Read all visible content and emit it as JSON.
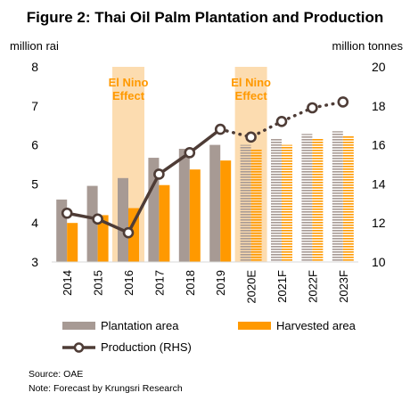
{
  "chart_data": {
    "type": "bar",
    "title": "Figure 2: Thai Oil Palm Plantation and Production",
    "left_axis_label": "million rai",
    "right_axis_label": "million tonnes",
    "categories": [
      "2014",
      "2015",
      "2016",
      "2017",
      "2018",
      "2019",
      "2020E",
      "2021F",
      "2022F",
      "2023F"
    ],
    "forecast_start_index": 6,
    "ylim_left": [
      3,
      8
    ],
    "yticks_left": [
      "3",
      "4",
      "5",
      "6",
      "7",
      "8"
    ],
    "ylim_right": [
      10,
      20
    ],
    "yticks_right": [
      "10",
      "12",
      "14",
      "16",
      "18",
      "20"
    ],
    "series": [
      {
        "name": "Plantation area",
        "axis": "left",
        "kind": "bar",
        "color": "#a79a94",
        "values": [
          4.6,
          4.95,
          5.15,
          5.67,
          5.9,
          6.0,
          6.0,
          6.15,
          6.28,
          6.35
        ]
      },
      {
        "name": "Harvested area",
        "axis": "left",
        "kind": "bar",
        "color": "#ff9900",
        "values": [
          4.0,
          4.2,
          4.38,
          4.97,
          5.37,
          5.6,
          5.9,
          6.0,
          6.17,
          6.22
        ]
      },
      {
        "name": "Production (RHS)",
        "axis": "right",
        "kind": "line",
        "color": "#4e3c36",
        "values": [
          12.5,
          12.2,
          11.5,
          14.5,
          15.6,
          16.8,
          16.4,
          17.2,
          17.9,
          18.2
        ]
      }
    ],
    "annotations": [
      {
        "text_line1": "El Nino",
        "text_line2": "Effect",
        "category_index": 2
      },
      {
        "text_line1": "El Nino",
        "text_line2": "Effect",
        "category_index": 6
      }
    ],
    "band_color": "#fcdcb0",
    "legend_placement": "bottom",
    "grid": false
  },
  "footnotes": {
    "source": "Source: OAE",
    "note": "Note: Forecast by Krungsri Research"
  }
}
